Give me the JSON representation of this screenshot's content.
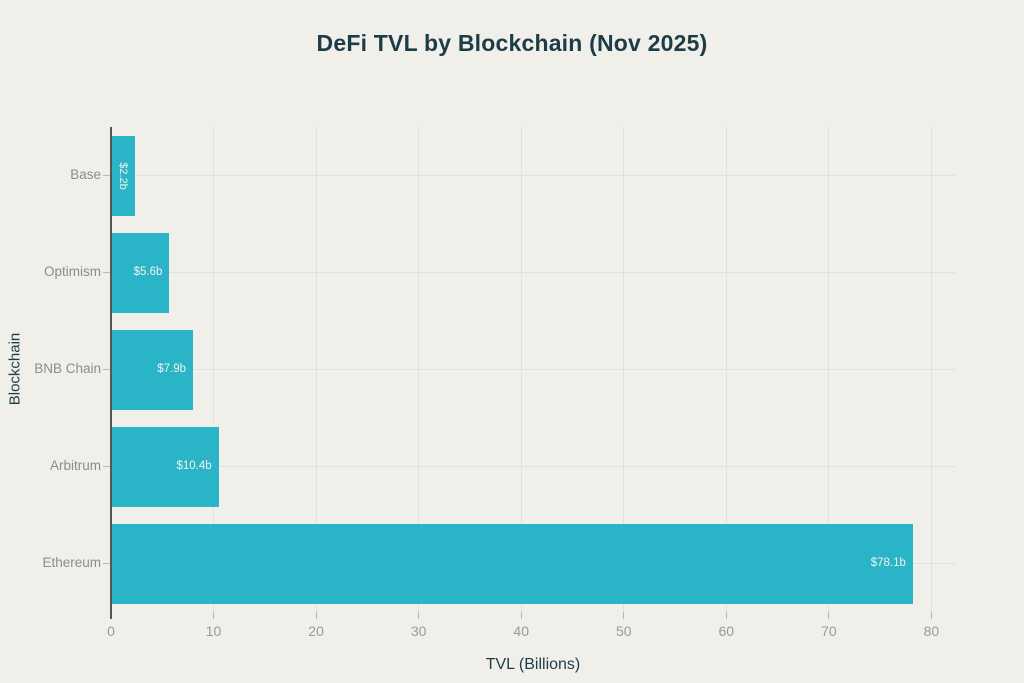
{
  "chart_data": {
    "type": "bar",
    "orientation": "horizontal",
    "title": "DeFi TVL by Blockchain (Nov 2025)",
    "xlabel": "TVL (Billions)",
    "ylabel": "Blockchain",
    "categories": [
      "Base",
      "Optimism",
      "BNB Chain",
      "Arbitrum",
      "Ethereum"
    ],
    "values": [
      2.2,
      5.6,
      7.9,
      10.4,
      78.1
    ],
    "value_labels": [
      "$2.2b",
      "$5.6b",
      "$7.9b",
      "$10.4b",
      "$78.1b"
    ],
    "xticks": [
      0,
      10,
      20,
      30,
      40,
      50,
      60,
      70,
      80
    ],
    "xlim": [
      0,
      82.3
    ],
    "grid": true,
    "legend": false,
    "bar_color": "#2ab4c7",
    "background_color": "#f0efe9",
    "title_color": "#1c3d47",
    "label_color": "#8c8c89",
    "tick_label_color": "#9b9b96",
    "value_label_color": "#f1f3ee"
  }
}
